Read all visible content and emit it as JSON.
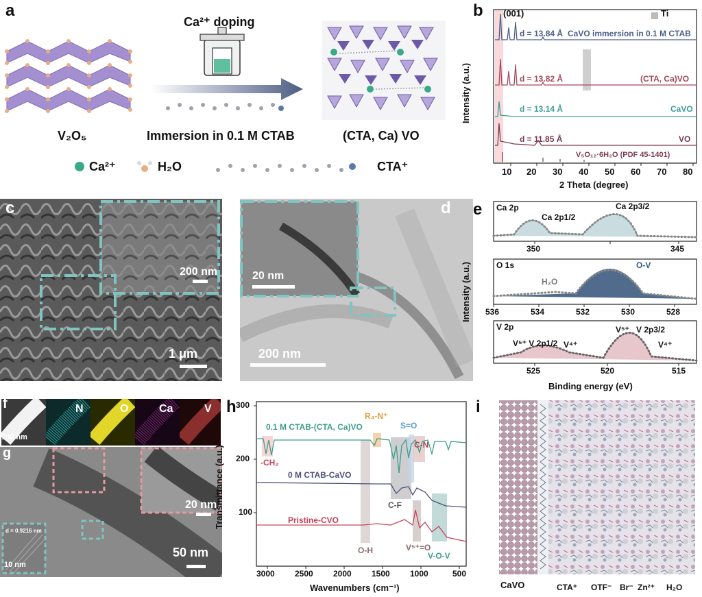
{
  "panel_labels": {
    "a": "a",
    "b": "b",
    "c": "c",
    "d": "d",
    "e": "e",
    "f": "f",
    "g": "g",
    "h": "h",
    "i": "i"
  },
  "panel_a": {
    "doping_label": "Ca²⁺ doping",
    "left_caption": "V₂O₅",
    "middle_caption": "Immersion in 0.1 M CTAB",
    "right_caption": "(CTA, Ca)  VO",
    "legend": {
      "ca": "Ca²⁺",
      "h2o": "H₂O",
      "cta": "CTA⁺"
    },
    "colors": {
      "vanadium_polyhedra": "#a48fd0",
      "oxygen": "#e9ad84",
      "calcium": "#3aa98a"
    }
  },
  "panel_b": {
    "peak_label": "(001)",
    "ti_legend": "Ti",
    "ylabel": "Intensity (a.u.)",
    "xlabel": "2 Theta (degree)",
    "xticks": [
      "10",
      "20",
      "30",
      "40",
      "50",
      "60",
      "70",
      "80"
    ],
    "traces": [
      {
        "d": "d = 13.84 Å",
        "name": "CaVO immersion in 0.1 M CTAB",
        "color": "#4b5d8c"
      },
      {
        "d": "d = 13.82 Å",
        "name": "(CTA, Ca)VO",
        "color": "#a4485c"
      },
      {
        "d": "d = 13.14 Å",
        "name": "CaVO",
        "color": "#3e9e95"
      },
      {
        "d": "d = 11.85 Å",
        "name": "VO",
        "color": "#7a3b52"
      }
    ],
    "pdf_label": "V₅O₁₂·6H₂O (PDF 45-1401)"
  },
  "panel_c": {
    "inset_scale": "200 nm",
    "main_scale": "1 μm"
  },
  "panel_d": {
    "inset_scale": "20 nm",
    "main_scale": "200 nm"
  },
  "panel_e": {
    "ylabel": "Intensity (a.u.)",
    "xlabel": "Binding energy (eV)",
    "ca": {
      "title": "Ca 2p",
      "peak1": "Ca 2p1/2",
      "peak2": "Ca 2p3/2",
      "ticks": [
        "350",
        "345"
      ]
    },
    "o": {
      "title": "O 1s",
      "peak1": "H₂O",
      "peak2": "O-V",
      "ticks": [
        "536",
        "534",
        "532",
        "530",
        "528"
      ]
    },
    "v": {
      "title": "V 2p",
      "l1": "V⁵⁺ V 2p1/2",
      "l2": "V⁴⁺",
      "l3": "V⁵⁺",
      "l4": "V 2p3/2",
      "l5": "V⁴⁺",
      "ticks": [
        "525",
        "520",
        "515"
      ]
    }
  },
  "panel_f": {
    "scale": "100 nm",
    "channels": [
      "N",
      "O",
      "Ca",
      "V"
    ]
  },
  "panel_g": {
    "inset_scale": "20 nm",
    "main_scale": "50 nm",
    "d_label": "d = 0.9216 nm",
    "hr_scale": "10 nm"
  },
  "panel_h": {
    "ylabel": "Transmittance (a.u.)",
    "xlabel": "Wavenumbers (cm⁻¹)",
    "yticks": [
      "300",
      "200",
      "100"
    ],
    "xticks": [
      "3000",
      "2500",
      "2000",
      "1500",
      "1000",
      "500"
    ],
    "traces": [
      {
        "name": "0.1 M CTAB-(CTA, Ca)VO",
        "color": "#3e9e8a"
      },
      {
        "name": "0 M CTAB-CaVO",
        "color": "#4b4f7a"
      },
      {
        "name": "Pristine-CVO",
        "color": "#c7435a"
      }
    ],
    "annotations": {
      "ch2": "-CH₂",
      "r4n": "R₄-N⁺",
      "so": "S=O",
      "cn": "C-N",
      "cf": "C-F",
      "oh": "O-H",
      "v5o": "V⁵⁺=O",
      "vov": "V-O-V"
    }
  },
  "panel_i": {
    "legend": {
      "cavo": "CaVO",
      "cta": "CTA⁺",
      "otf": "OTF⁻",
      "br": "Br⁻",
      "zn": "Zn²⁺",
      "h2o": "H₂O"
    }
  }
}
